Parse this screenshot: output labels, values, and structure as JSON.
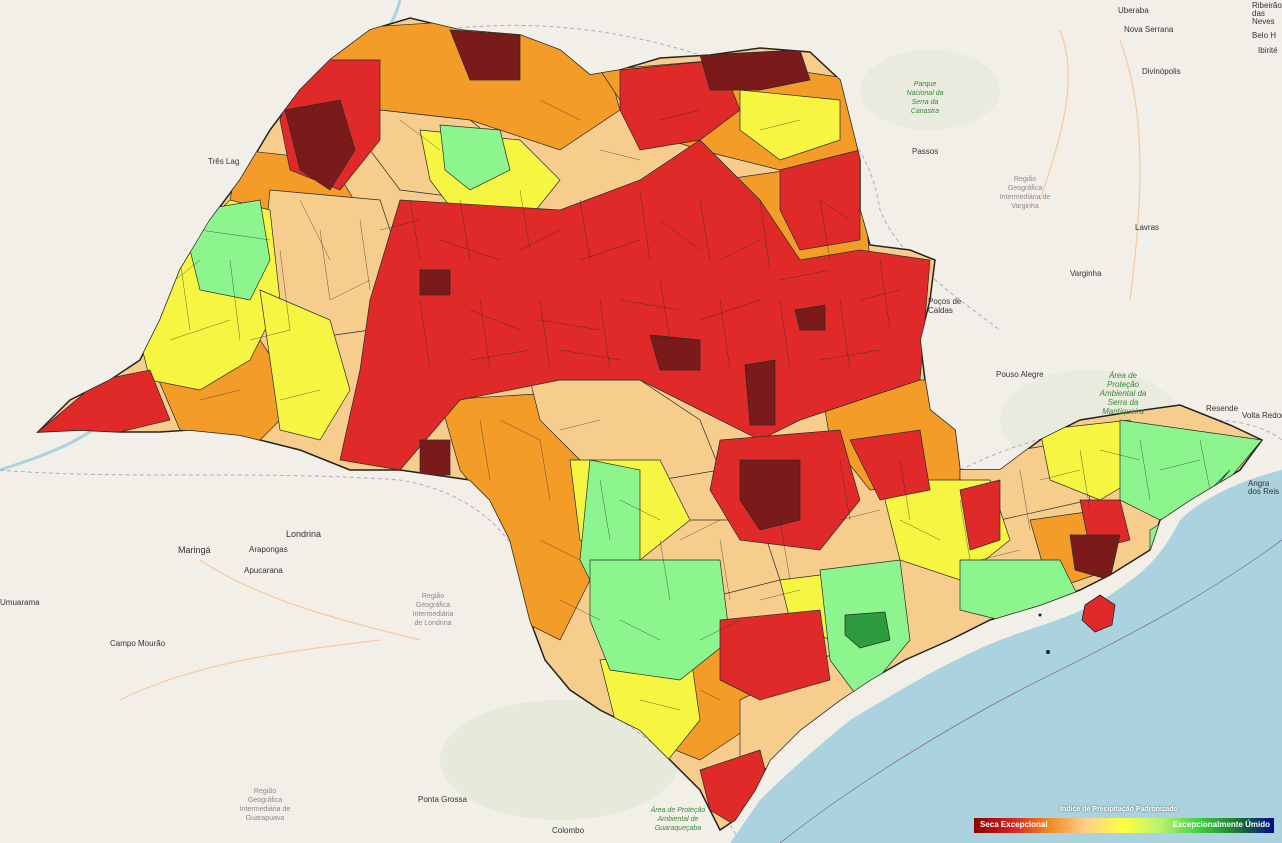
{
  "map": {
    "region": "São Paulo",
    "colors": {
      "land": "#f2efe9",
      "ocean": "#aad3df",
      "state_border": "#222222",
      "exceptional_drought": "#7a1a1a",
      "extreme_drought": "#e02a2a",
      "severe_drought": "#f39c27",
      "moderate_drought": "#f7cd8e",
      "near_normal": "#f5f542",
      "moderately_wet": "#8df58d",
      "very_wet": "#2e9a3e"
    }
  },
  "labels": {
    "uberaba": "Uberaba",
    "nova_serrana": "Nova Serrana",
    "divinopolis": "Divinópolis",
    "belo": "Belo H",
    "ibirite": "Ibirité",
    "ribeirao_neves": "Ribeirão das Neves",
    "tres_lagoas": "Três Lag",
    "passos": "Passos",
    "varginha": "Varginha",
    "lavras": "Lavras",
    "pocos_caldas": "Poços de Caldas",
    "pouso_alegre": "Pouso Alegre",
    "resende": "Resende",
    "volta_redonda": "Volta Redon",
    "angra": "Angra dos Reis",
    "londrina": "Londrina",
    "maringa": "Maringá",
    "arapongas": "Arapongas",
    "apucarana": "Apucarana",
    "campo_mourao": "Campo Mourão",
    "ponta_grossa": "Ponta Grossa",
    "colombo": "Colombo",
    "umuarama": "Umuarama",
    "region_varginha": "Região Geográfica Intermediária de Varginha",
    "region_londrina": "Região Geográfica Intermediária de Londrina",
    "region_guarapuava": "Região Geográfica Intermediária de Guarapuava",
    "park_canastra": "Parque Nacional da Serra da Canastra",
    "park_mantiqueira": "Área de Proteção Ambiental da Serra da Mantiqueira",
    "park_guaraquecaba": "Área de Proteção Ambiental de Guaraqueçaba"
  },
  "legend": {
    "title": "Índice de Precipitação Padronizado",
    "min_label": "Seca Excepcional",
    "max_label": "Excepcionalmente Úmido",
    "colors": [
      "#8b0000",
      "#d42020",
      "#f08a24",
      "#ffd08a",
      "#ffff40",
      "#b8f070",
      "#40d040",
      "#1a7a30",
      "#000a8c"
    ]
  }
}
